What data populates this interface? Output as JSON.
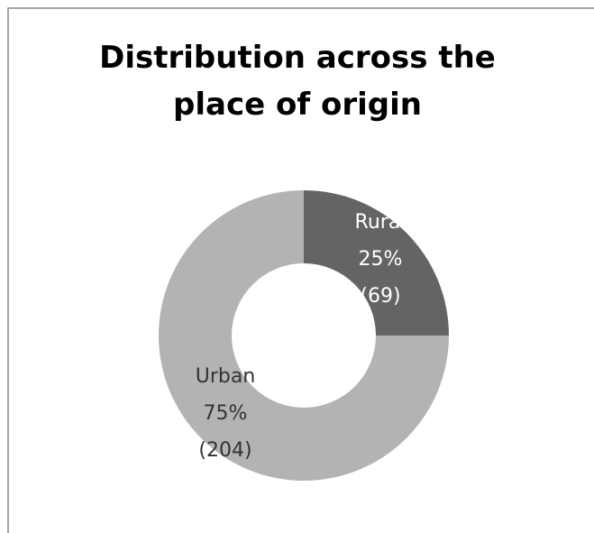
{
  "chart_data": {
    "type": "donut",
    "title": "Distribution across the place of origin",
    "categories": [
      "Rural",
      "Urban"
    ],
    "values": [
      25,
      75
    ],
    "value_labels": [
      "25%",
      "75%"
    ],
    "counts": [
      69,
      204
    ],
    "count_labels": [
      "(69)",
      "(204)"
    ],
    "colors": [
      "#646464",
      "#b3b3b3"
    ]
  }
}
